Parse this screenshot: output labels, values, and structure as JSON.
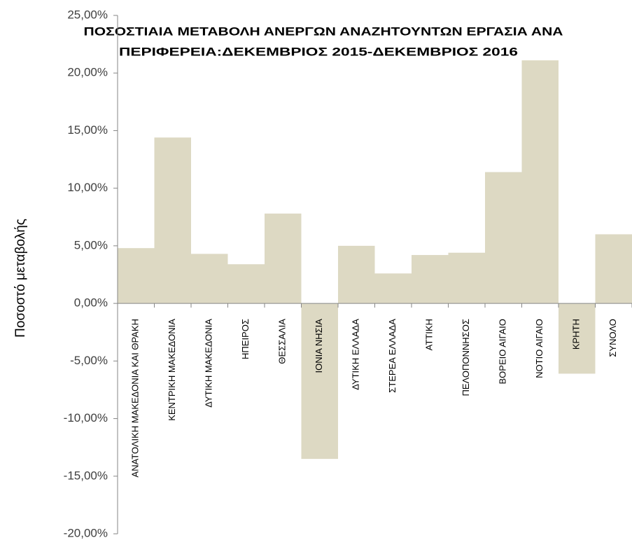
{
  "chart_data": {
    "type": "bar",
    "title": [
      "ΠΟΣΟΣΤΙΑΙΑ ΜΕΤΑΒΟΛΗ ΑΝΕΡΓΩΝ ΑΝΑΖΗΤΟΥΝΤΩΝ ΕΡΓΑΣΙΑ ΑΝΑ",
      "ΠΕΡΙΦΕΡΕΙΑ:ΔΕΚΕΜΒΡΙΟΣ 2015-ΔΕΚΕΜΒΡΙΟΣ 2016"
    ],
    "y_label": "Ποσοστό μεταβολής",
    "categories": [
      "ΑΝΑΤΟΛΙΚΗ ΜΑΚΕΔΟΝΙΑ ΚΑΙ ΘΡΑΚΗ",
      "ΚΕΝΤΡΙΚΗ ΜΑΚΕΔΟΝΙΑ",
      "ΔΥΤΙΚΗ ΜΑΚΕΔΟΝΙΑ",
      "ΗΠΕΙΡΟΣ",
      "ΘΕΣΣΑΛΙΑ",
      "ΙΟΝΙΑ ΝΗΣΙΑ",
      "ΔΥΤΙΚΗ ΕΛΛΑΔΑ",
      "ΣΤΕΡΕΑ ΕΛΛΑΔΑ",
      "ΑΤΤΙΚΗ",
      "ΠΕΛΟΠΟΝΝΗΣΟΣ",
      "ΒΟΡΕΙΟ ΑΙΓΑΙΟ",
      "ΝΟΤΙΟ ΑΙΓΑΙΟ",
      "ΚΡΗΤΗ",
      "ΣΥΝΟΛΟ"
    ],
    "values": [
      4.8,
      14.4,
      4.3,
      3.4,
      7.8,
      -13.5,
      5.0,
      2.6,
      4.2,
      4.4,
      11.4,
      21.1,
      -6.1,
      6.0
    ],
    "color": "#ddd9c3",
    "ylim": [
      -20,
      25
    ],
    "yticks": [
      {
        "value": -20,
        "label": "-20,00%"
      },
      {
        "value": -15,
        "label": "-15,00%"
      },
      {
        "value": -10,
        "label": "-10,00%"
      },
      {
        "value": -5,
        "label": "-5,00%"
      },
      {
        "value": 0,
        "label": "0,00%"
      },
      {
        "value": 5,
        "label": "5,00%"
      },
      {
        "value": 10,
        "label": "10,00%"
      },
      {
        "value": 15,
        "label": "15,00%"
      },
      {
        "value": 20,
        "label": "20,00%"
      },
      {
        "value": 25,
        "label": "25,00%"
      }
    ],
    "grid": false
  }
}
